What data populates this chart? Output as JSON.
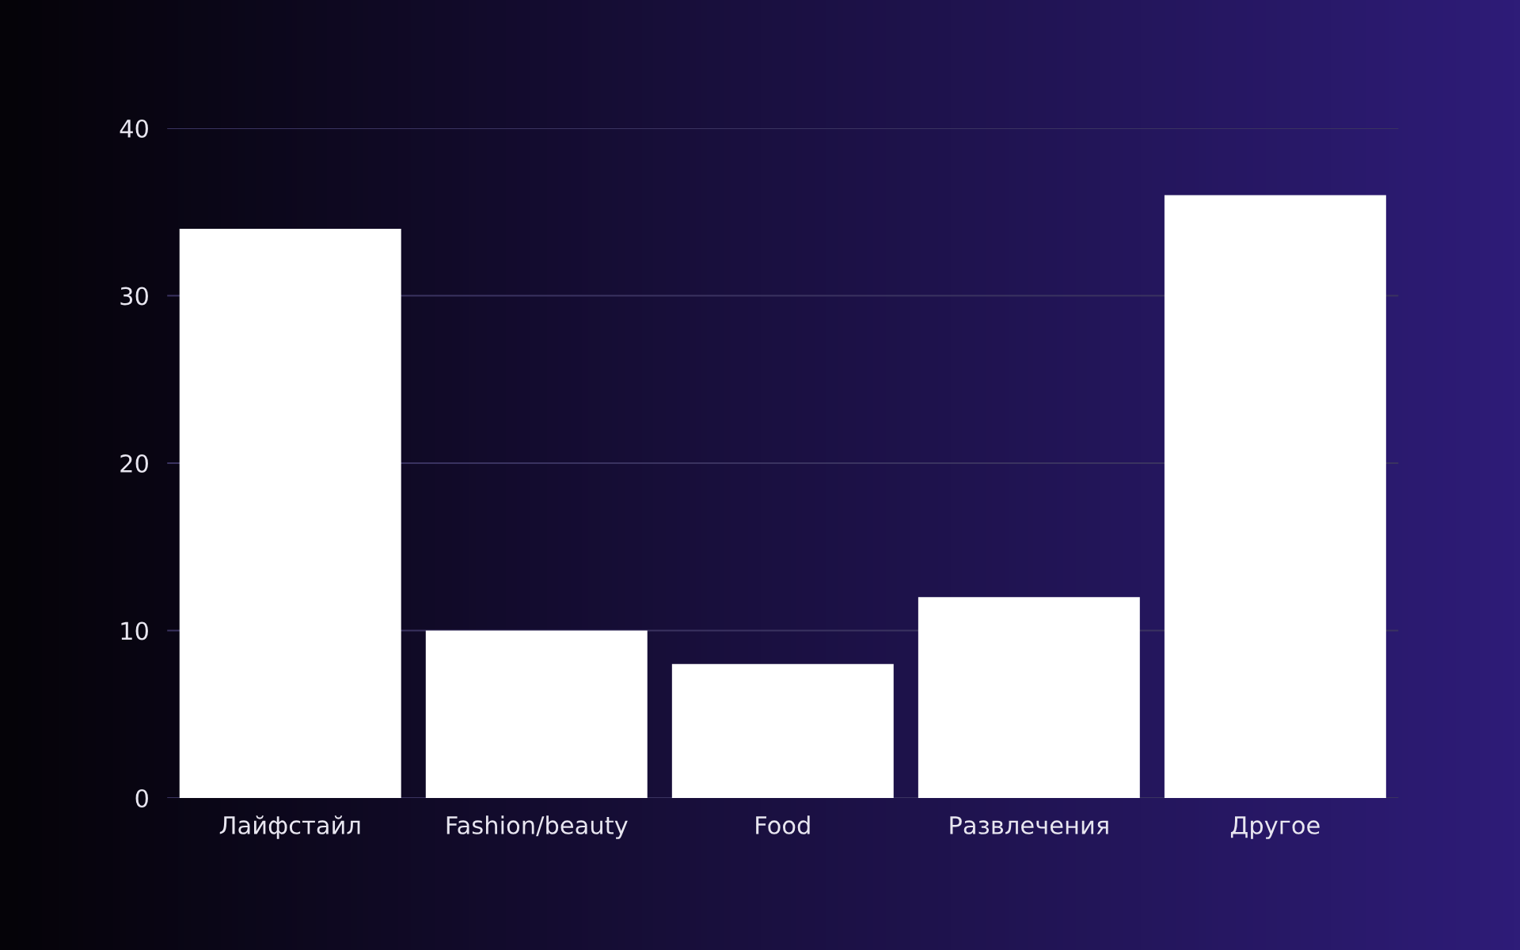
{
  "chart_data": {
    "type": "bar",
    "categories": [
      "Лайфстайл",
      "Fashion/beauty",
      "Food",
      "Развлечения",
      "Другое"
    ],
    "values": [
      34,
      10,
      8,
      12,
      36
    ],
    "color": "#ffffff",
    "ylim": [
      0,
      40
    ],
    "yticks": [
      0,
      10,
      20,
      30,
      40
    ],
    "grid": "y"
  }
}
